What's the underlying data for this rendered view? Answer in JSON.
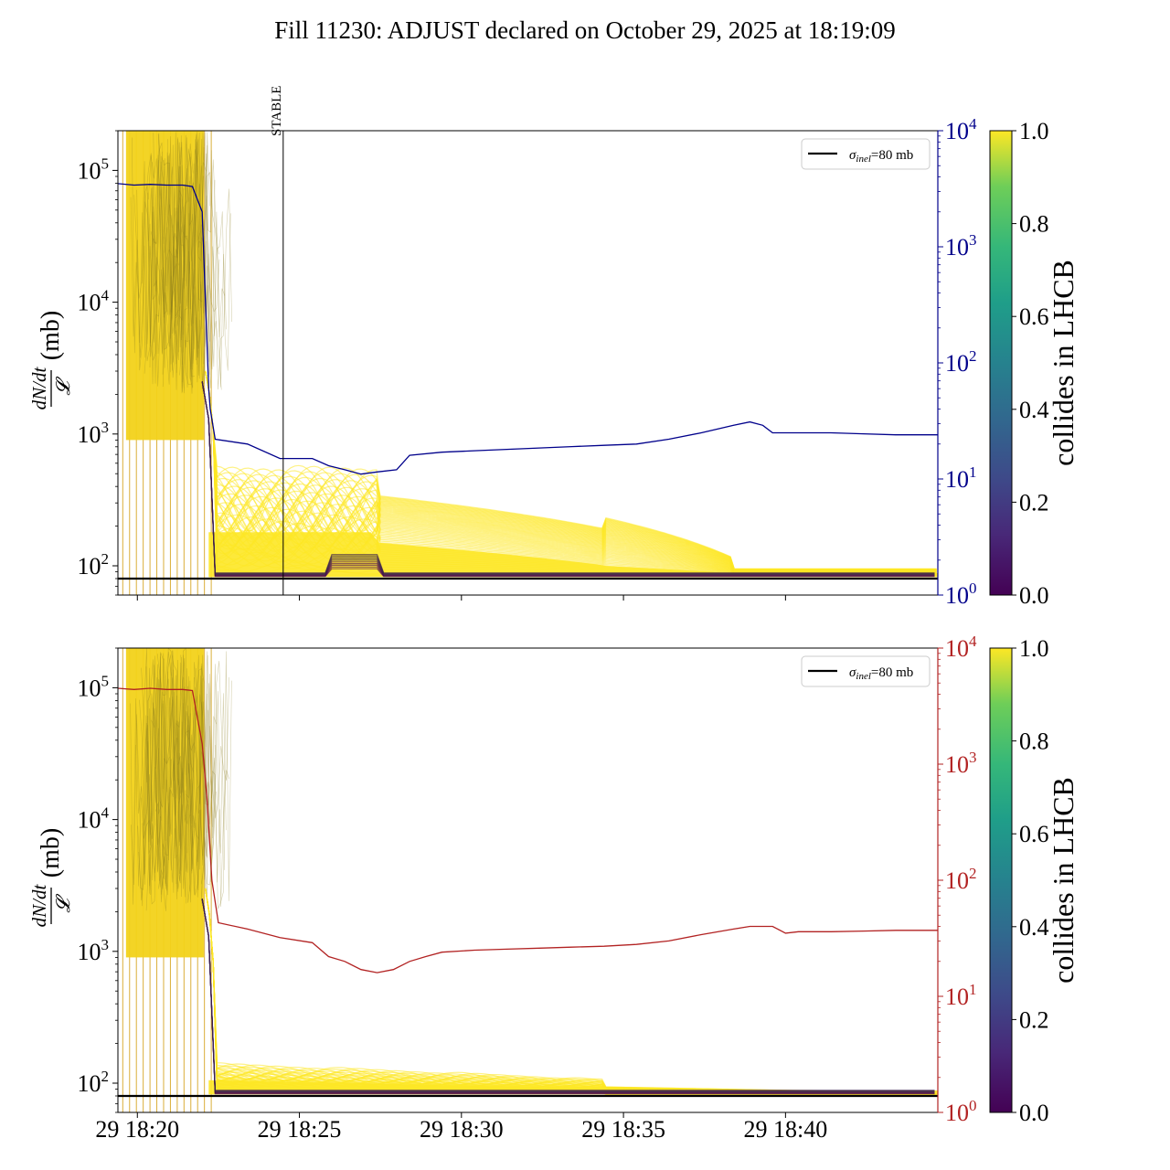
{
  "title": "Fill 11230: ADJUST declared on October 29, 2025 at 18:19:09",
  "chart_data": [
    {
      "type": "line",
      "panel": "top",
      "ylabel_numer": "dN/dt",
      "ylabel_denom": "𝓛",
      "ylabel_unit": "(mb)",
      "yscale": "log",
      "ylim": [
        60,
        200000
      ],
      "yticks": [
        {
          "label": "10",
          "exp": "2",
          "value": 100
        },
        {
          "label": "10",
          "exp": "3",
          "value": 1000
        },
        {
          "label": "10",
          "exp": "4",
          "value": 10000
        },
        {
          "label": "10",
          "exp": "5",
          "value": 100000
        }
      ],
      "xlim_min": [
        0,
        25.3
      ],
      "xtick_minutes": [
        0.6,
        5.6,
        10.6,
        15.6,
        20.6
      ],
      "xtick_labels": [],
      "sigma_line": {
        "label": "σ",
        "sub": "inel",
        "suffix": "=80 mb",
        "value": 80
      },
      "stable_marker": {
        "label": "STABLE",
        "minute": 5.1
      },
      "twin_axis": {
        "color": "#00008b",
        "yscale": "log",
        "ylim": [
          1,
          10000
        ],
        "yticks": [
          {
            "label": "10",
            "exp": "0",
            "value": 1
          },
          {
            "label": "10",
            "exp": "1",
            "value": 10
          },
          {
            "label": "10",
            "exp": "2",
            "value": 100
          },
          {
            "label": "10",
            "exp": "3",
            "value": 1000
          },
          {
            "label": "10",
            "exp": "4",
            "value": 10000
          }
        ],
        "series": {
          "x": [
            0,
            0.5,
            1,
            1.5,
            2,
            2.3,
            2.6,
            2.7,
            2.8,
            2.85,
            3,
            4,
            5,
            6,
            6.5,
            7,
            7.5,
            8,
            8.6,
            9,
            10,
            11,
            12,
            13,
            14,
            15,
            16,
            17,
            18,
            19,
            19.5,
            19.9,
            20.2,
            21,
            22,
            23,
            24,
            25.3
          ],
          "y": [
            3500,
            3400,
            3450,
            3400,
            3400,
            3300,
            2000,
            350,
            60,
            40,
            22,
            20,
            15,
            15,
            13,
            12,
            11,
            11.5,
            12,
            16,
            17,
            17.5,
            18,
            18.5,
            19,
            19.5,
            20,
            22,
            25,
            29,
            31,
            29,
            25,
            25,
            25,
            24.5,
            24,
            24
          ]
        }
      },
      "bunch_series_note": "per-bunch curves colored by collision fraction"
    },
    {
      "type": "line",
      "panel": "bottom",
      "ylabel_numer": "dN/dt",
      "ylabel_denom": "𝓛",
      "ylabel_unit": "(mb)",
      "yscale": "log",
      "ylim": [
        60,
        200000
      ],
      "yticks": [
        {
          "label": "10",
          "exp": "2",
          "value": 100
        },
        {
          "label": "10",
          "exp": "3",
          "value": 1000
        },
        {
          "label": "10",
          "exp": "4",
          "value": 10000
        },
        {
          "label": "10",
          "exp": "5",
          "value": 100000
        }
      ],
      "xlim_min": [
        0,
        25.3
      ],
      "xtick_minutes": [
        0.6,
        5.6,
        10.6,
        15.6,
        20.6
      ],
      "xtick_labels": [
        "29 18:20",
        "29 18:25",
        "29 18:30",
        "29 18:35",
        "29 18:40"
      ],
      "sigma_line": {
        "label": "σ",
        "sub": "inel",
        "suffix": "=80 mb",
        "value": 80
      },
      "twin_axis": {
        "color": "#b22222",
        "yscale": "log",
        "ylim": [
          1,
          10000
        ],
        "yticks": [
          {
            "label": "10",
            "exp": "0",
            "value": 1
          },
          {
            "label": "10",
            "exp": "1",
            "value": 10
          },
          {
            "label": "10",
            "exp": "2",
            "value": 100
          },
          {
            "label": "10",
            "exp": "3",
            "value": 1000
          },
          {
            "label": "10",
            "exp": "4",
            "value": 10000
          }
        ],
        "series": {
          "x": [
            0,
            0.5,
            1,
            1.5,
            2,
            2.3,
            2.6,
            2.75,
            2.9,
            3.1,
            4,
            5,
            6,
            6.5,
            7,
            7.5,
            8,
            8.5,
            9,
            9.5,
            10,
            11,
            12,
            13,
            14,
            15,
            16,
            17,
            18,
            19,
            19.5,
            20.2,
            20.6,
            21,
            22,
            23,
            24,
            25.3
          ],
          "y": [
            4500,
            4400,
            4500,
            4400,
            4400,
            4300,
            1500,
            500,
            100,
            43,
            38,
            32,
            29,
            22,
            20,
            17,
            16,
            17,
            20,
            22,
            24,
            25,
            25.5,
            26,
            26.5,
            27,
            28,
            30,
            34,
            38,
            40,
            40,
            35,
            36,
            36,
            36.5,
            37,
            37
          ]
        }
      },
      "bunch_series_note": "per-bunch curves colored by collision fraction"
    }
  ],
  "colorbar": {
    "label": "collides in LHCB",
    "ticks": [
      "0.0",
      "0.2",
      "0.4",
      "0.6",
      "0.8",
      "1.0"
    ]
  }
}
